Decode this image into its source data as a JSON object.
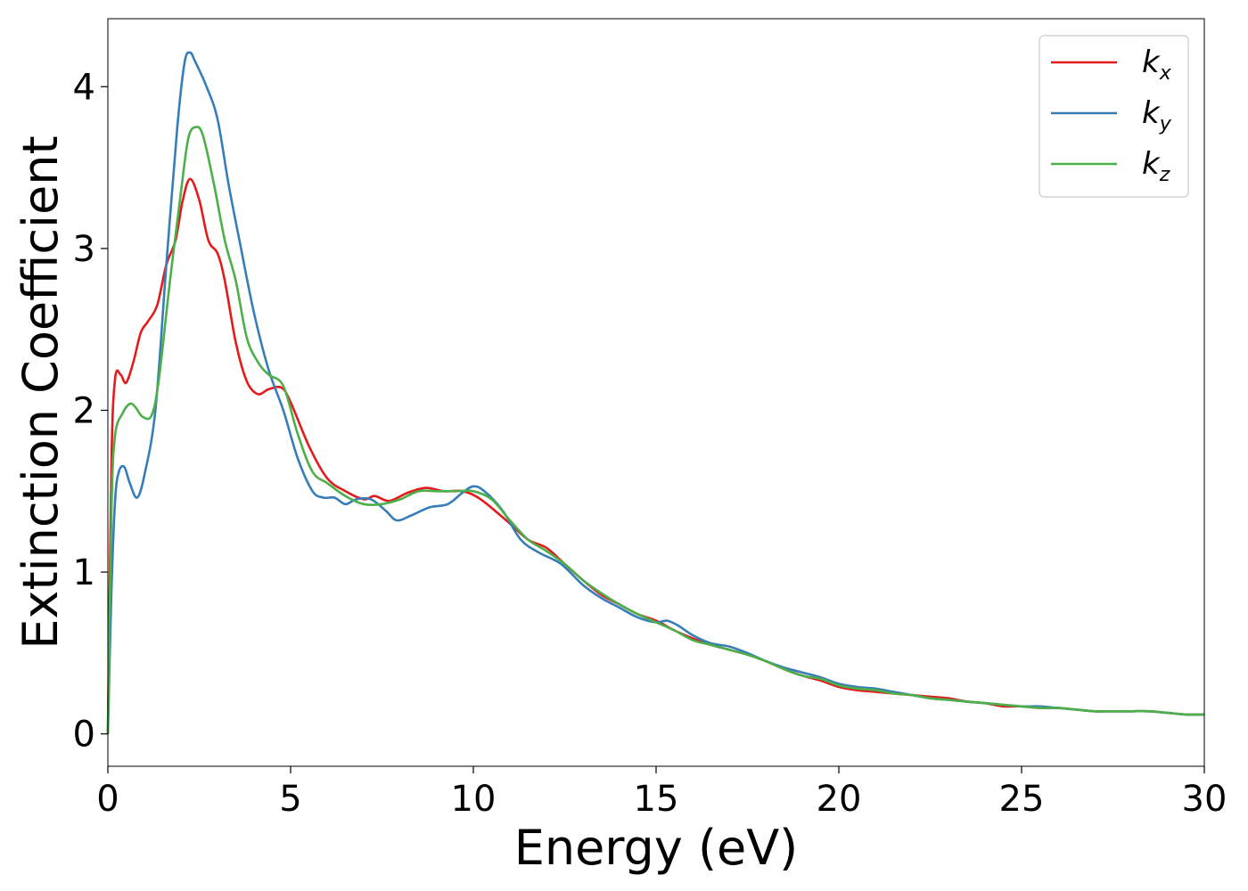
{
  "chart_data": {
    "type": "line",
    "title": "",
    "xlabel": "Energy (eV)",
    "ylabel": "Extinction Coefficient",
    "xlim": [
      0,
      30
    ],
    "ylim": [
      -0.2,
      4.42
    ],
    "xticks": [
      0,
      5,
      10,
      15,
      20,
      25,
      30
    ],
    "yticks": [
      0,
      1,
      2,
      3,
      4
    ],
    "grid": false,
    "legend_position": "top-right",
    "series": [
      {
        "name": "k",
        "name_sub": "x",
        "color": "#e41a1c",
        "x": [
          0,
          0.1,
          0.2,
          0.35,
          0.5,
          0.7,
          0.9,
          1.1,
          1.35,
          1.6,
          1.85,
          2.05,
          2.25,
          2.5,
          2.75,
          3.0,
          3.2,
          3.5,
          3.8,
          4.1,
          4.4,
          4.75,
          5.0,
          5.5,
          6.0,
          6.5,
          7.0,
          7.3,
          7.7,
          8.2,
          8.7,
          9.2,
          9.7,
          10.2,
          11.0,
          11.5,
          12.0,
          12.5,
          13.0,
          13.5,
          14.0,
          14.5,
          15.0,
          15.5,
          16.0,
          16.5,
          17.0,
          17.5,
          18.0,
          18.5,
          19.0,
          19.5,
          20.0,
          20.5,
          21.0,
          21.5,
          22.0,
          22.5,
          23.0,
          23.5,
          24.0,
          24.5,
          25.0,
          25.5,
          26.0,
          26.5,
          27.0,
          27.5,
          28.0,
          28.5,
          29.0,
          29.5,
          30.0
        ],
        "y": [
          0,
          1.7,
          2.2,
          2.22,
          2.17,
          2.3,
          2.48,
          2.55,
          2.65,
          2.9,
          3.05,
          3.3,
          3.43,
          3.3,
          3.05,
          2.97,
          2.8,
          2.42,
          2.18,
          2.1,
          2.13,
          2.14,
          2.05,
          1.78,
          1.58,
          1.5,
          1.45,
          1.47,
          1.44,
          1.49,
          1.52,
          1.5,
          1.5,
          1.45,
          1.3,
          1.2,
          1.15,
          1.05,
          0.95,
          0.86,
          0.8,
          0.74,
          0.7,
          0.64,
          0.59,
          0.55,
          0.52,
          0.49,
          0.45,
          0.4,
          0.36,
          0.33,
          0.29,
          0.27,
          0.26,
          0.25,
          0.24,
          0.23,
          0.22,
          0.2,
          0.19,
          0.17,
          0.17,
          0.16,
          0.16,
          0.15,
          0.14,
          0.14,
          0.14,
          0.14,
          0.13,
          0.12,
          0.12
        ]
      },
      {
        "name": "k",
        "name_sub": "y",
        "color": "#377eb8",
        "x": [
          0,
          0.1,
          0.2,
          0.3,
          0.45,
          0.6,
          0.8,
          1.0,
          1.3,
          1.6,
          1.9,
          2.1,
          2.25,
          2.4,
          2.7,
          3.0,
          3.3,
          3.6,
          4.0,
          4.4,
          4.8,
          5.2,
          5.6,
          5.9,
          6.2,
          6.5,
          6.8,
          7.2,
          7.6,
          7.9,
          8.3,
          8.8,
          9.3,
          9.7,
          10.0,
          10.3,
          10.8,
          11.3,
          11.8,
          12.4,
          13.0,
          13.5,
          14.0,
          14.5,
          15.0,
          15.3,
          15.6,
          16.0,
          16.5,
          17.0,
          17.5,
          18.0,
          18.5,
          19.0,
          19.5,
          20.0,
          20.5,
          21.0,
          21.5,
          22.0,
          22.5,
          23.0,
          23.5,
          24.0,
          24.5,
          25.0,
          25.5,
          26.0,
          26.5,
          27.0,
          27.5,
          28.0,
          28.5,
          29.0,
          29.5,
          30.0
        ],
        "y": [
          0,
          0.9,
          1.45,
          1.62,
          1.65,
          1.55,
          1.46,
          1.6,
          2.0,
          2.9,
          3.75,
          4.15,
          4.21,
          4.15,
          4.0,
          3.8,
          3.4,
          3.05,
          2.6,
          2.25,
          2.0,
          1.7,
          1.5,
          1.46,
          1.46,
          1.42,
          1.45,
          1.45,
          1.38,
          1.32,
          1.35,
          1.4,
          1.42,
          1.49,
          1.53,
          1.5,
          1.38,
          1.2,
          1.12,
          1.05,
          0.92,
          0.84,
          0.78,
          0.72,
          0.69,
          0.7,
          0.67,
          0.61,
          0.56,
          0.54,
          0.5,
          0.45,
          0.41,
          0.38,
          0.35,
          0.31,
          0.29,
          0.28,
          0.26,
          0.24,
          0.22,
          0.21,
          0.2,
          0.19,
          0.18,
          0.17,
          0.17,
          0.16,
          0.15,
          0.14,
          0.14,
          0.14,
          0.14,
          0.13,
          0.12,
          0.12
        ]
      },
      {
        "name": "k",
        "name_sub": "z",
        "color": "#4daf4a",
        "x": [
          0,
          0.1,
          0.2,
          0.4,
          0.6,
          0.75,
          0.95,
          1.2,
          1.4,
          1.7,
          2.0,
          2.2,
          2.4,
          2.6,
          2.9,
          3.2,
          3.5,
          3.8,
          4.1,
          4.4,
          4.8,
          5.2,
          5.6,
          6.0,
          6.5,
          7.0,
          7.5,
          8.0,
          8.5,
          9.0,
          9.5,
          10.0,
          10.5,
          11.0,
          11.5,
          12.0,
          12.5,
          13.0,
          13.5,
          14.0,
          14.5,
          15.0,
          15.5,
          16.0,
          16.5,
          17.0,
          17.5,
          18.0,
          18.5,
          19.0,
          19.5,
          20.0,
          20.5,
          21.0,
          21.5,
          22.0,
          22.5,
          23.0,
          23.5,
          24.0,
          24.5,
          25.0,
          25.5,
          26.0,
          26.5,
          27.0,
          27.5,
          28.0,
          28.5,
          29.0,
          29.5,
          30.0
        ],
        "y": [
          0,
          1.4,
          1.85,
          1.98,
          2.04,
          2.02,
          1.96,
          1.97,
          2.2,
          2.8,
          3.35,
          3.68,
          3.75,
          3.7,
          3.4,
          3.05,
          2.8,
          2.45,
          2.3,
          2.22,
          2.15,
          1.85,
          1.62,
          1.55,
          1.47,
          1.42,
          1.42,
          1.45,
          1.5,
          1.5,
          1.5,
          1.5,
          1.45,
          1.32,
          1.2,
          1.13,
          1.05,
          0.95,
          0.87,
          0.8,
          0.74,
          0.69,
          0.64,
          0.58,
          0.55,
          0.52,
          0.49,
          0.45,
          0.4,
          0.36,
          0.34,
          0.3,
          0.28,
          0.27,
          0.25,
          0.24,
          0.22,
          0.21,
          0.2,
          0.19,
          0.18,
          0.17,
          0.16,
          0.16,
          0.15,
          0.14,
          0.14,
          0.14,
          0.14,
          0.13,
          0.12,
          0.12
        ]
      }
    ]
  }
}
